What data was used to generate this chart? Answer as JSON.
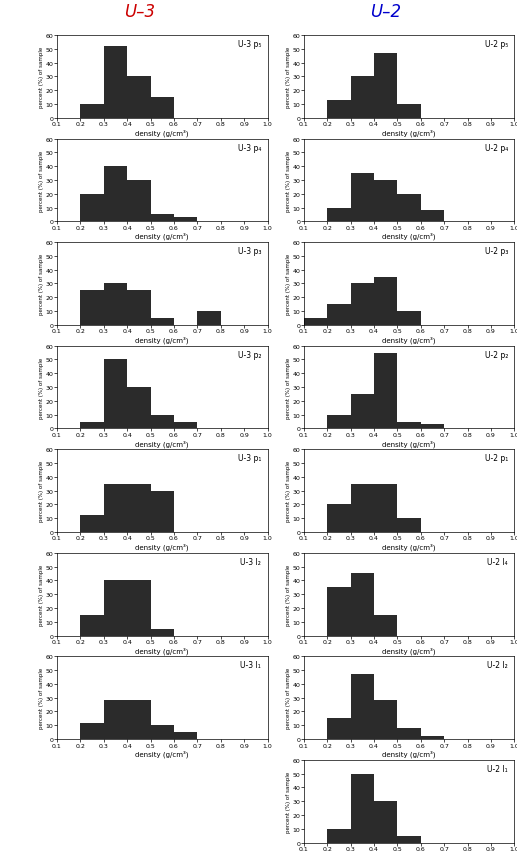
{
  "title_left": "U–3",
  "title_right": "U–2",
  "title_color_left": "#cc0000",
  "title_color_right": "#0000cc",
  "xlabel": "density (g/cm³)",
  "ylabel": "percent (%) of sample",
  "xlim": [
    0.1,
    1.0
  ],
  "ylim": [
    0,
    60
  ],
  "yticks": [
    0,
    10,
    20,
    30,
    40,
    50,
    60
  ],
  "xticks": [
    0.1,
    0.2,
    0.3,
    0.4,
    0.5,
    0.6,
    0.7,
    0.8,
    0.9,
    1.0
  ],
  "bin_edges": [
    0.1,
    0.2,
    0.3,
    0.4,
    0.5,
    0.6,
    0.7,
    0.8,
    0.9,
    1.0
  ],
  "bar_color": "#2b2b2b",
  "left_panels": [
    {
      "label": "U-3 p₅",
      "values": [
        0,
        10,
        52,
        30,
        15,
        0,
        0,
        0,
        0
      ]
    },
    {
      "label": "U-3 p₄",
      "values": [
        0,
        20,
        40,
        30,
        5,
        3,
        0,
        0,
        0
      ]
    },
    {
      "label": "U-3 p₃",
      "values": [
        0,
        25,
        30,
        25,
        5,
        0,
        10,
        0,
        0
      ]
    },
    {
      "label": "U-3 p₂",
      "values": [
        0,
        5,
        50,
        30,
        10,
        5,
        0,
        0,
        0
      ]
    },
    {
      "label": "U-3 p₁",
      "values": [
        0,
        12,
        35,
        35,
        30,
        0,
        0,
        0,
        0
      ]
    },
    {
      "label": "U-3 l₂",
      "values": [
        0,
        15,
        40,
        40,
        5,
        0,
        0,
        0,
        0
      ]
    },
    {
      "label": "U-3 l₁",
      "values": [
        0,
        12,
        28,
        28,
        10,
        5,
        0,
        0,
        0
      ]
    }
  ],
  "right_panels": [
    {
      "label": "U-2 p₅",
      "values": [
        0,
        13,
        30,
        47,
        10,
        0,
        0,
        0,
        0
      ]
    },
    {
      "label": "U-2 p₄",
      "values": [
        0,
        10,
        35,
        30,
        20,
        8,
        0,
        0,
        0
      ]
    },
    {
      "label": "U-2 p₃",
      "values": [
        5,
        15,
        30,
        35,
        10,
        0,
        0,
        0,
        0
      ]
    },
    {
      "label": "U-2 p₂",
      "values": [
        0,
        10,
        25,
        55,
        5,
        3,
        0,
        0,
        0
      ]
    },
    {
      "label": "U-2 p₁",
      "values": [
        0,
        20,
        35,
        35,
        10,
        0,
        0,
        0,
        0
      ]
    },
    {
      "label": "U-2 l₄",
      "values": [
        0,
        35,
        45,
        15,
        0,
        0,
        0,
        0,
        0
      ]
    },
    {
      "label": "U-2 l₂",
      "values": [
        0,
        15,
        47,
        28,
        8,
        2,
        0,
        0,
        0
      ]
    },
    {
      "label": "U-2 l₁",
      "values": [
        0,
        10,
        50,
        30,
        5,
        0,
        0,
        0,
        0
      ]
    }
  ]
}
